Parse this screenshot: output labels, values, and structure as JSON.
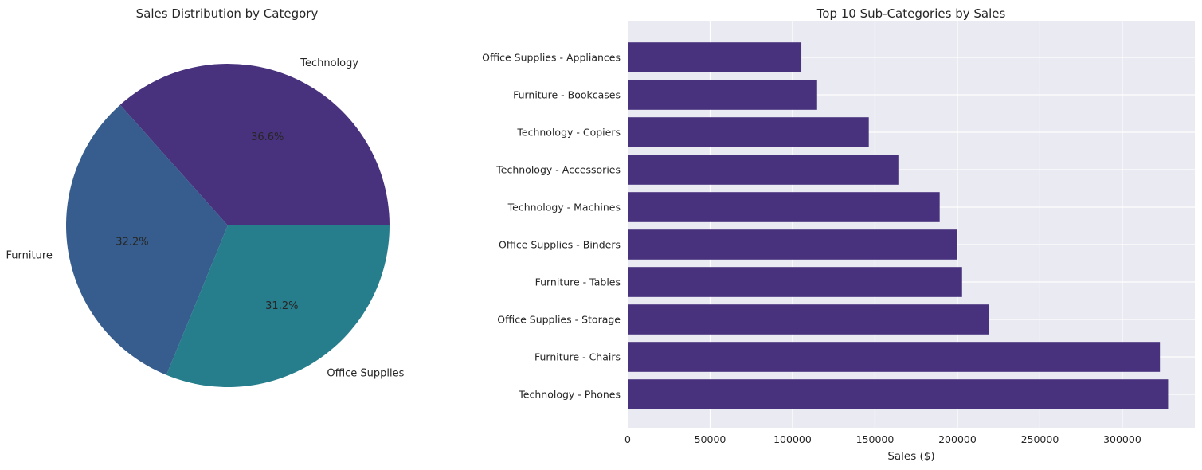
{
  "chart_data": [
    {
      "type": "pie",
      "title": "Sales Distribution by Category",
      "slices": [
        {
          "label": "Technology",
          "value": 36.6,
          "pct_label": "36.6%",
          "color": "#48327d"
        },
        {
          "label": "Furniture",
          "value": 32.2,
          "pct_label": "32.2%",
          "color": "#365d8d"
        },
        {
          "label": "Office Supplies",
          "value": 31.2,
          "pct_label": "31.2%",
          "color": "#267d8c"
        }
      ]
    },
    {
      "type": "bar",
      "orientation": "horizontal",
      "title": "Top 10 Sub-Categories by Sales",
      "xlabel": "Sales ($)",
      "ylabel": "",
      "xlim": [
        0,
        344000
      ],
      "xticks": [
        0,
        50000,
        100000,
        150000,
        200000,
        250000,
        300000
      ],
      "xtick_labels": [
        "0",
        "50000",
        "100000",
        "150000",
        "200000",
        "250000",
        "300000"
      ],
      "grid": true,
      "bar_color": "#48327d",
      "categories": [
        "Technology - Phones",
        "Furniture - Chairs",
        "Office Supplies - Storage",
        "Furniture - Tables",
        "Office Supplies - Binders",
        "Technology - Machines",
        "Technology - Accessories",
        "Technology - Copiers",
        "Furniture - Bookcases",
        "Office Supplies - Appliances"
      ],
      "values": [
        327782,
        322823,
        219343,
        202811,
        200028,
        189239,
        164187,
        146248,
        114880,
        105340
      ]
    }
  ]
}
